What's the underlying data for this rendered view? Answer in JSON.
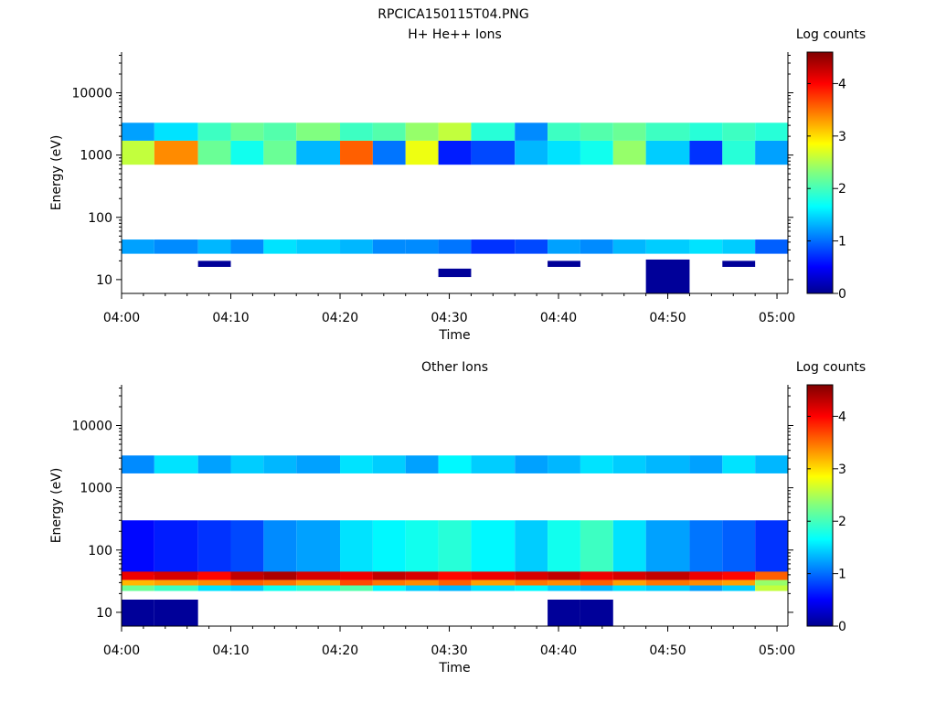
{
  "figure_title": "RPCICA150115T04.PNG",
  "colors": {
    "colormap": [
      "#00008f",
      "#0000ff",
      "#0080ff",
      "#00ffff",
      "#80ff80",
      "#ffff00",
      "#ff8000",
      "#ff0000",
      "#800000"
    ],
    "axis": "#000000",
    "background": "#ffffff"
  },
  "chart_data": [
    {
      "type": "heatmap",
      "title": "H+ He++ Ions",
      "xlabel": "Time",
      "ylabel": "Energy (eV)",
      "yscale": "log",
      "ylim": [
        6,
        45000
      ],
      "xlim": [
        "04:00",
        "05:01"
      ],
      "x_ticks": [
        "04:00",
        "04:10",
        "04:20",
        "04:30",
        "04:40",
        "04:50",
        "05:00"
      ],
      "y_ticks": [
        "10",
        "100",
        "1000",
        "10000"
      ],
      "colorbar_label": "Log counts",
      "colorbar_range": [
        0,
        4.6
      ],
      "colorbar_ticks": [
        "0",
        "1",
        "2",
        "3",
        "4"
      ],
      "grid": false,
      "time_bins": [
        "04:00",
        "04:03",
        "04:07",
        "04:10",
        "04:13",
        "04:16",
        "04:20",
        "04:23",
        "04:26",
        "04:29",
        "04:32",
        "04:36",
        "04:39",
        "04:42",
        "04:45",
        "04:48",
        "04:52",
        "04:55",
        "04:58"
      ],
      "bands": [
        {
          "e_low": 700,
          "e_high": 1700,
          "values": [
            2.6,
            3.4,
            2.2,
            1.8,
            2.2,
            1.4,
            3.6,
            1.1,
            2.8,
            0.7,
            0.9,
            1.4,
            1.6,
            1.8,
            2.4,
            1.5,
            0.8,
            1.9,
            1.3
          ]
        },
        {
          "e_low": 1700,
          "e_high": 3300,
          "values": [
            1.3,
            1.6,
            2.0,
            2.2,
            2.1,
            2.3,
            2.0,
            2.1,
            2.4,
            2.6,
            1.9,
            1.2,
            2.0,
            2.1,
            2.2,
            2.0,
            1.9,
            2.0,
            1.9
          ]
        },
        {
          "e_low": 26,
          "e_high": 44,
          "values": [
            1.3,
            1.2,
            1.4,
            1.2,
            1.6,
            1.5,
            1.4,
            1.2,
            1.2,
            1.1,
            0.8,
            0.9,
            1.3,
            1.2,
            1.4,
            1.5,
            1.6,
            1.5,
            1.0
          ]
        },
        {
          "e_low": 11,
          "e_high": 15,
          "values": [
            0,
            0,
            0,
            0,
            0,
            0,
            0,
            0,
            0,
            0.05,
            0,
            0,
            0,
            0,
            0,
            0,
            0,
            0,
            0
          ]
        },
        {
          "e_low": 6,
          "e_high": 21,
          "values": [
            0,
            0,
            0,
            0,
            0,
            0,
            0,
            0,
            0,
            0,
            0,
            0,
            0,
            0,
            0,
            0.05,
            0,
            0,
            0
          ]
        },
        {
          "e_low": 16,
          "e_high": 20,
          "values": [
            0,
            0,
            0.05,
            0,
            0,
            0,
            0,
            0,
            0,
            0,
            0,
            0,
            0.05,
            0,
            0,
            0,
            0,
            0.05,
            0
          ]
        }
      ]
    },
    {
      "type": "heatmap",
      "title": "Other Ions",
      "xlabel": "Time",
      "ylabel": "Energy (eV)",
      "yscale": "log",
      "ylim": [
        6,
        45000
      ],
      "xlim": [
        "04:00",
        "05:01"
      ],
      "x_ticks": [
        "04:00",
        "04:10",
        "04:20",
        "04:30",
        "04:40",
        "04:50",
        "05:00"
      ],
      "y_ticks": [
        "10",
        "100",
        "1000",
        "10000"
      ],
      "colorbar_label": "Log counts",
      "colorbar_range": [
        0,
        4.6
      ],
      "colorbar_ticks": [
        "0",
        "1",
        "2",
        "3",
        "4"
      ],
      "grid": false,
      "time_bins": [
        "04:00",
        "04:03",
        "04:07",
        "04:10",
        "04:13",
        "04:16",
        "04:20",
        "04:23",
        "04:26",
        "04:29",
        "04:32",
        "04:36",
        "04:39",
        "04:42",
        "04:45",
        "04:48",
        "04:52",
        "04:55",
        "04:58"
      ],
      "bands": [
        {
          "e_low": 1700,
          "e_high": 3300,
          "values": [
            1.2,
            1.6,
            1.3,
            1.5,
            1.4,
            1.3,
            1.6,
            1.5,
            1.3,
            1.7,
            1.5,
            1.3,
            1.4,
            1.6,
            1.5,
            1.4,
            1.3,
            1.6,
            1.4
          ]
        },
        {
          "e_low": 40,
          "e_high": 300,
          "values": [
            0.6,
            0.7,
            0.8,
            0.9,
            1.2,
            1.3,
            1.6,
            1.7,
            1.8,
            1.9,
            1.7,
            1.5,
            1.8,
            2.0,
            1.6,
            1.3,
            1.1,
            1.0,
            0.8
          ]
        },
        {
          "e_low": 33,
          "e_high": 45,
          "values": [
            4.1,
            4.2,
            4.0,
            4.3,
            4.4,
            4.2,
            4.1,
            4.3,
            4.2,
            4.0,
            4.1,
            4.2,
            4.3,
            4.1,
            4.2,
            4.3,
            4.1,
            4.0,
            3.6
          ]
        },
        {
          "e_low": 27,
          "e_high": 33,
          "values": [
            3.2,
            3.3,
            3.4,
            3.6,
            3.5,
            3.3,
            3.7,
            3.5,
            3.4,
            3.6,
            3.3,
            3.5,
            3.4,
            3.6,
            3.3,
            3.5,
            3.4,
            3.3,
            2.4
          ]
        },
        {
          "e_low": 22,
          "e_high": 27,
          "values": [
            2.2,
            2.0,
            1.6,
            1.5,
            1.8,
            1.9,
            2.1,
            1.7,
            1.5,
            1.4,
            1.6,
            1.7,
            1.5,
            1.4,
            1.6,
            1.5,
            1.3,
            1.5,
            2.6
          ]
        },
        {
          "e_low": 6,
          "e_high": 16,
          "values": [
            0.05,
            0.05,
            0,
            0,
            0,
            0,
            0,
            0,
            0,
            0,
            0,
            0,
            0.05,
            0.05,
            0,
            0,
            0,
            0,
            0
          ]
        }
      ]
    }
  ]
}
